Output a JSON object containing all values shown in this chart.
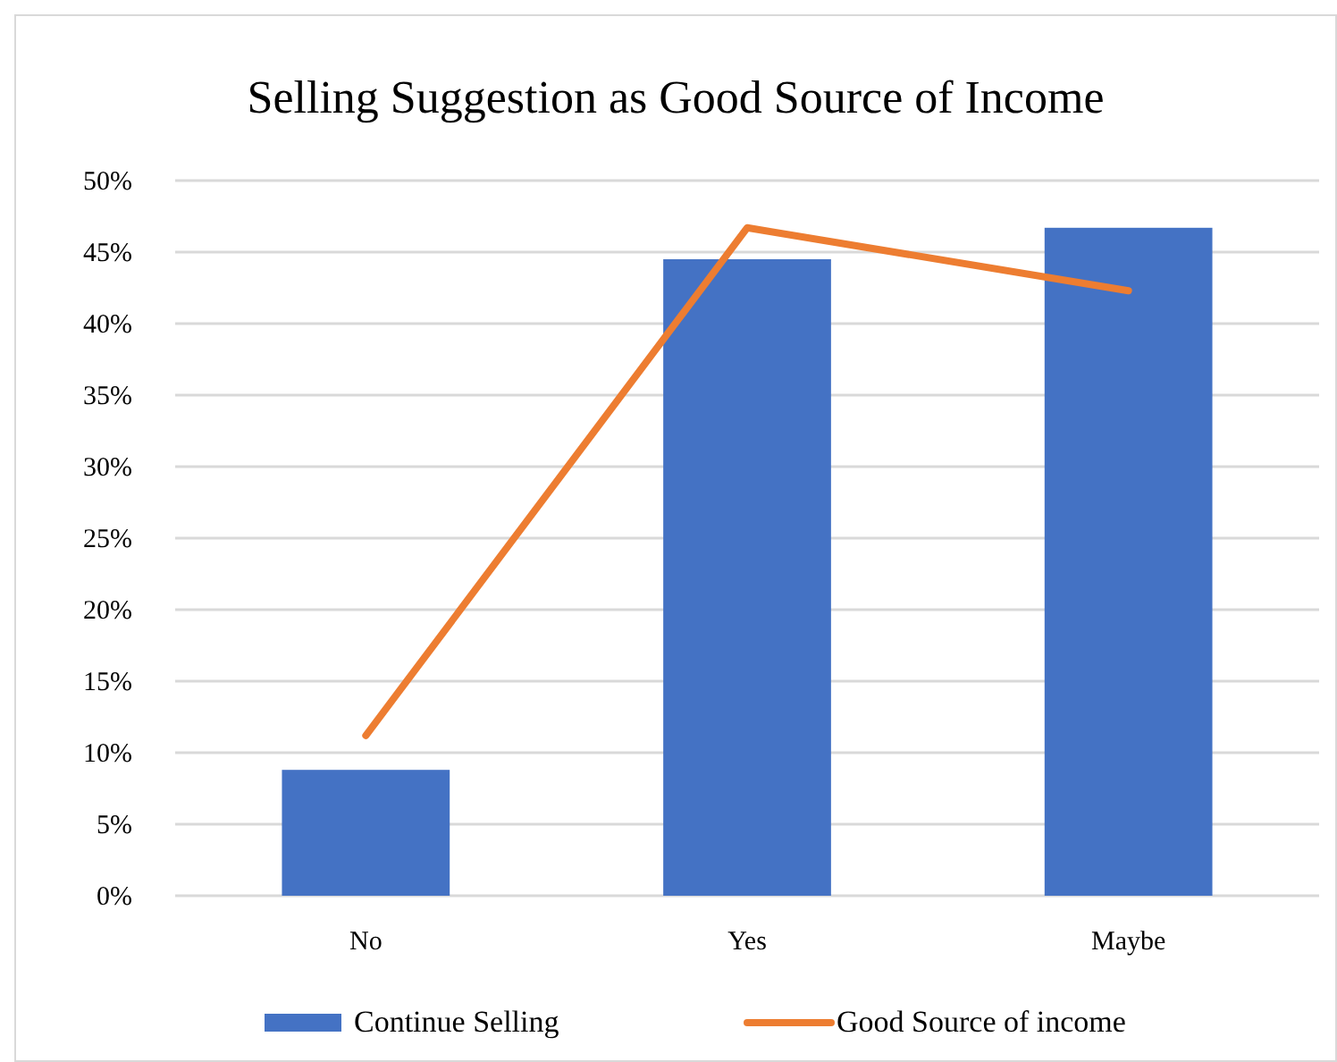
{
  "chart_data": {
    "type": "bar",
    "title": "Selling Suggestion as Good Source of Income",
    "categories": [
      "No",
      "Yes",
      "Maybe"
    ],
    "series": [
      {
        "name": "Continue Selling",
        "color": "#4472c4",
        "values": [
          8.8,
          44.5,
          46.7
        ]
      },
      {
        "name": "Good Source of income",
        "color": "#ed7d31",
        "type": "line",
        "values": [
          11.2,
          46.7,
          42.3
        ]
      }
    ],
    "ylim": [
      0,
      50
    ],
    "yticks": [
      {
        "value": 0,
        "label": "0%"
      },
      {
        "value": 5,
        "label": "5%"
      },
      {
        "value": 10,
        "label": "10%"
      },
      {
        "value": 15,
        "label": "15%"
      },
      {
        "value": 20,
        "label": "20%"
      },
      {
        "value": 25,
        "label": "25%"
      },
      {
        "value": 30,
        "label": "30%"
      },
      {
        "value": 35,
        "label": "35%"
      },
      {
        "value": 40,
        "label": "40%"
      },
      {
        "value": 45,
        "label": "45%"
      },
      {
        "value": 50,
        "label": "50%"
      }
    ],
    "grid": "y",
    "legend": "bottom",
    "marker": "none",
    "line_style": "solid"
  }
}
